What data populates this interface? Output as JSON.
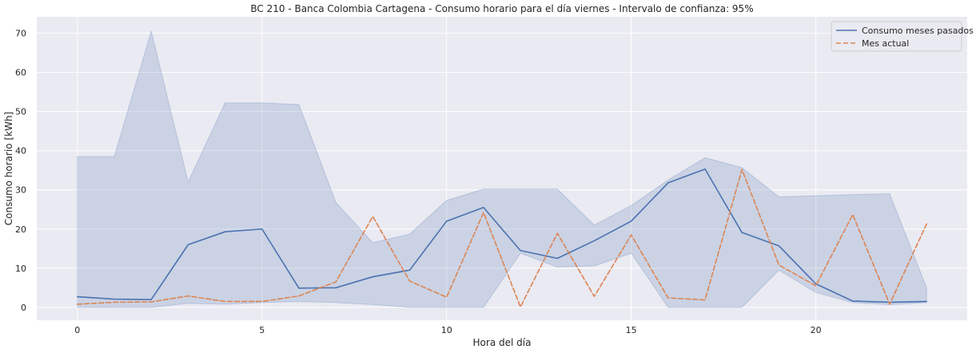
{
  "chart_data": {
    "type": "line",
    "title": "BC 210 - Banca Colombia Cartagena - Consumo horario para el día viernes - Intervalo de confianza: 95%",
    "xlabel": "Hora del día",
    "ylabel": "Consumo horario [kWh]",
    "xlim": [
      -1.1,
      24.1
    ],
    "ylim": [
      -3.3,
      74.2
    ],
    "xticks": [
      0,
      5,
      10,
      15,
      20
    ],
    "yticks": [
      0,
      10,
      20,
      30,
      40,
      50,
      60,
      70
    ],
    "grid": true,
    "legend_position": "top-right",
    "x": [
      0,
      1,
      2,
      3,
      4,
      5,
      6,
      7,
      8,
      9,
      10,
      11,
      12,
      13,
      14,
      15,
      16,
      17,
      18,
      19,
      20,
      21,
      22,
      23
    ],
    "series": [
      {
        "name": "Consumo meses pasados",
        "color": "#4c72b0",
        "style": "solid",
        "values": [
          2.7,
          2.1,
          2.0,
          16.0,
          19.3,
          20.0,
          4.9,
          5.0,
          7.8,
          9.5,
          22.0,
          25.5,
          14.5,
          12.5,
          17.0,
          22.0,
          31.8,
          35.3,
          19.1,
          15.7,
          6.0,
          1.6,
          1.3,
          1.5
        ],
        "ci_lower": [
          0.0,
          0.0,
          0.0,
          1.0,
          0.8,
          1.2,
          1.5,
          1.2,
          0.7,
          0.0,
          0.0,
          0.0,
          13.8,
          10.3,
          10.6,
          13.8,
          0.0,
          0.0,
          0.0,
          9.5,
          3.8,
          1.2,
          0.7,
          1.2
        ],
        "ci_upper": [
          38.5,
          38.5,
          70.5,
          32.0,
          52.2,
          52.2,
          51.8,
          26.8,
          16.5,
          18.7,
          27.3,
          30.2,
          30.2,
          30.2,
          21.0,
          26.0,
          32.5,
          38.2,
          35.7,
          28.2,
          28.5,
          28.8,
          29.0,
          5.0
        ]
      },
      {
        "name": "Mes actual",
        "color": "#dd8452",
        "style": "dashed",
        "values": [
          0.8,
          1.3,
          1.4,
          2.9,
          1.5,
          1.5,
          2.9,
          6.5,
          23.2,
          6.7,
          2.6,
          24.2,
          0.1,
          18.9,
          2.8,
          18.5,
          2.4,
          1.9,
          35.2,
          10.8,
          5.5,
          23.7,
          0.8,
          21.3
        ]
      }
    ]
  }
}
